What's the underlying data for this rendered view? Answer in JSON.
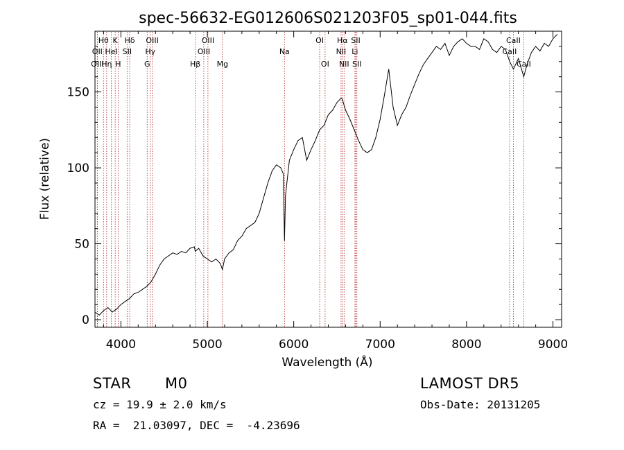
{
  "chart_data": {
    "type": "line",
    "title": "spec-56632-EG012606S021203F05_sp01-044.fits",
    "xlabel": "Wavelength (Å)",
    "ylabel": "Flux (relative)",
    "xlim": [
      3700,
      9100
    ],
    "ylim": [
      -5,
      190
    ],
    "xticks": [
      4000,
      5000,
      6000,
      7000,
      8000,
      9000
    ],
    "yticks": [
      0,
      50,
      100,
      150
    ],
    "grid": false,
    "line_color": "#000000",
    "marker_color": "#b22222",
    "x": [
      3700,
      3750,
      3800,
      3850,
      3900,
      3950,
      4000,
      4050,
      4100,
      4150,
      4200,
      4250,
      4300,
      4350,
      4400,
      4450,
      4500,
      4550,
      4600,
      4650,
      4700,
      4750,
      4800,
      4850,
      4860,
      4900,
      4950,
      5000,
      5050,
      5100,
      5150,
      5175,
      5200,
      5250,
      5300,
      5350,
      5400,
      5450,
      5500,
      5550,
      5600,
      5650,
      5700,
      5750,
      5800,
      5850,
      5880,
      5893,
      5905,
      5950,
      6000,
      6050,
      6100,
      6150,
      6200,
      6250,
      6300,
      6350,
      6400,
      6450,
      6500,
      6550,
      6563,
      6600,
      6650,
      6700,
      6750,
      6800,
      6850,
      6900,
      6950,
      7000,
      7050,
      7100,
      7150,
      7200,
      7250,
      7300,
      7350,
      7400,
      7450,
      7500,
      7550,
      7600,
      7650,
      7700,
      7750,
      7800,
      7850,
      7900,
      7950,
      8000,
      8050,
      8100,
      8150,
      8200,
      8250,
      8300,
      8350,
      8400,
      8450,
      8500,
      8542,
      8600,
      8662,
      8700,
      8750,
      8800,
      8850,
      8900,
      8950,
      9000,
      9050
    ],
    "y": [
      5,
      3,
      6,
      8,
      5,
      7,
      10,
      12,
      14,
      17,
      18,
      20,
      22,
      25,
      30,
      36,
      40,
      42,
      44,
      43,
      45,
      44,
      47,
      48,
      45,
      47,
      42,
      40,
      38,
      40,
      37,
      33,
      40,
      44,
      46,
      52,
      55,
      60,
      62,
      64,
      70,
      80,
      90,
      98,
      102,
      100,
      96,
      52,
      82,
      105,
      112,
      118,
      120,
      105,
      112,
      118,
      125,
      128,
      135,
      138,
      143,
      146,
      145,
      138,
      132,
      125,
      118,
      112,
      110,
      112,
      120,
      132,
      148,
      165,
      140,
      128,
      135,
      140,
      148,
      155,
      162,
      168,
      172,
      176,
      180,
      178,
      182,
      174,
      180,
      183,
      185,
      182,
      180,
      180,
      178,
      185,
      183,
      178,
      176,
      180,
      178,
      170,
      165,
      172,
      160,
      168,
      176,
      180,
      177,
      182,
      180,
      185,
      188
    ]
  },
  "lines": [
    {
      "label": "Hθ",
      "wavelength": 3798,
      "row": 1
    },
    {
      "label": "K",
      "wavelength": 3934,
      "row": 1
    },
    {
      "label": "Hδ",
      "wavelength": 4102,
      "row": 1
    },
    {
      "label": "OIII",
      "wavelength": 4363,
      "row": 1
    },
    {
      "label": "OIII",
      "wavelength": 5007,
      "row": 1
    },
    {
      "label": "OI",
      "wavelength": 6300,
      "row": 1
    },
    {
      "label": "Hα",
      "wavelength": 6563,
      "row": 1
    },
    {
      "label": "SII",
      "wavelength": 6717,
      "row": 1
    },
    {
      "label": "CaII",
      "wavelength": 8542,
      "row": 1
    },
    {
      "label": "OII",
      "wavelength": 3727,
      "row": 2
    },
    {
      "label": "HeI",
      "wavelength": 3889,
      "row": 2
    },
    {
      "label": "SII",
      "wavelength": 4072,
      "row": 2
    },
    {
      "label": "Hγ",
      "wavelength": 4340,
      "row": 2
    },
    {
      "label": "OIII",
      "wavelength": 4959,
      "row": 2
    },
    {
      "label": "Na",
      "wavelength": 5893,
      "row": 2
    },
    {
      "label": "NII",
      "wavelength": 6548,
      "row": 2
    },
    {
      "label": "Li",
      "wavelength": 6708,
      "row": 2
    },
    {
      "label": "CaII",
      "wavelength": 8498,
      "row": 2
    },
    {
      "label": "OIII",
      "wavelength": 3727,
      "row": 3
    },
    {
      "label": "Hη",
      "wavelength": 3835,
      "row": 3
    },
    {
      "label": "H",
      "wavelength": 3968,
      "row": 3
    },
    {
      "label": "G",
      "wavelength": 4304,
      "row": 3
    },
    {
      "label": "Hβ",
      "wavelength": 4861,
      "row": 3
    },
    {
      "label": "Mg",
      "wavelength": 5175,
      "row": 3
    },
    {
      "label": "OI",
      "wavelength": 6363,
      "row": 3
    },
    {
      "label": "NII",
      "wavelength": 6583,
      "row": 3
    },
    {
      "label": "SII",
      "wavelength": 6731,
      "row": 3
    },
    {
      "label": "CaII",
      "wavelength": 8662,
      "row": 3
    }
  ],
  "info": {
    "object_class": "STAR",
    "subclass": "M0",
    "survey": "LAMOST DR5",
    "cz": "cz = 19.9 ± 2.0 km/s",
    "obs_date": "Obs-Date: 20131205",
    "coords": "RA =  21.03097, DEC =  -4.23696"
  }
}
